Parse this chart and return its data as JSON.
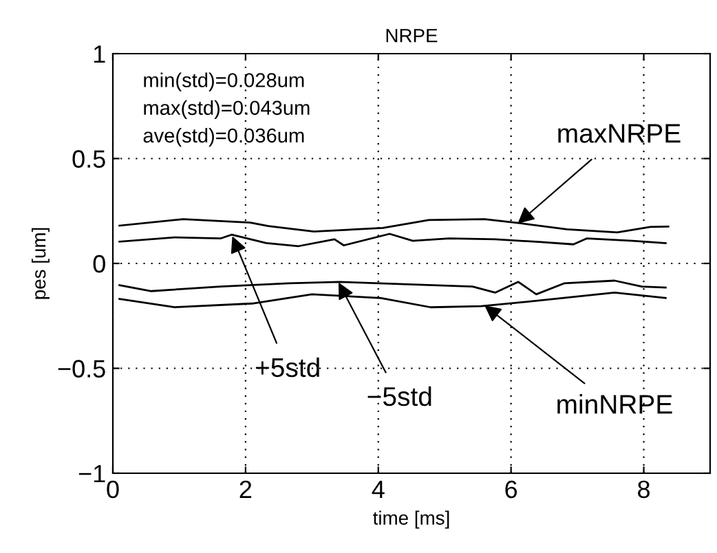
{
  "chart_data": {
    "type": "line",
    "title": "NRPE",
    "xlabel": "time [ms]",
    "ylabel": "pes [um]",
    "xlim": [
      0,
      9
    ],
    "xticks": [
      0,
      2,
      4,
      6,
      8
    ],
    "ylim": [
      -1,
      1
    ],
    "yticks": [
      {
        "value": -1,
        "label": "−1"
      },
      {
        "value": -0.5,
        "label": "−0.5"
      },
      0,
      0.5,
      1
    ],
    "grid": true,
    "legend": false,
    "line_style": "solid",
    "marker": "none",
    "series": [
      {
        "color": "#000000",
        "x": [
          0.1,
          1.06,
          2.07,
          2.34,
          3.03,
          4.07,
          4.76,
          5.6,
          6.15,
          6.84,
          7.6,
          8.1,
          8.37
        ],
        "values": [
          0.18,
          0.211,
          0.195,
          0.178,
          0.152,
          0.169,
          0.207,
          0.211,
          0.191,
          0.163,
          0.148,
          0.174,
          0.176
        ]
      },
      {
        "color": "#000000",
        "x": [
          0.1,
          0.93,
          1.62,
          1.79,
          2.31,
          2.79,
          3.34,
          3.48,
          4.17,
          4.52,
          5.07,
          5.76,
          6.45,
          6.94,
          7.14,
          7.83,
          8.33
        ],
        "values": [
          0.104,
          0.124,
          0.119,
          0.137,
          0.097,
          0.082,
          0.115,
          0.086,
          0.141,
          0.108,
          0.119,
          0.115,
          0.102,
          0.091,
          0.119,
          0.108,
          0.097
        ]
      },
      {
        "color": "#000000",
        "x": [
          0.1,
          0.58,
          1.62,
          2.65,
          3.41,
          4.38,
          5.42,
          5.76,
          6.11,
          6.38,
          6.8,
          7.56,
          7.97,
          8.33
        ],
        "values": [
          -0.104,
          -0.132,
          -0.11,
          -0.095,
          -0.088,
          -0.099,
          -0.11,
          -0.139,
          -0.088,
          -0.147,
          -0.095,
          -0.082,
          -0.11,
          -0.115
        ]
      },
      {
        "color": "#000000",
        "x": [
          0.1,
          0.93,
          2.1,
          3.0,
          4.04,
          4.79,
          5.55,
          6.45,
          7.56,
          8.33
        ],
        "values": [
          -0.169,
          -0.209,
          -0.191,
          -0.147,
          -0.165,
          -0.209,
          -0.204,
          -0.176,
          -0.139,
          -0.165
        ]
      }
    ],
    "annotations": [
      "min(std)=0.028um",
      "max(std)=0.043um",
      "ave(std)=0.036um",
      {
        "text": "maxNRPE",
        "x": 6.1,
        "y": 0.19
      },
      {
        "text": "+5std",
        "x": 1.8,
        "y": 0.13
      },
      {
        "text": "−5std",
        "x": 3.4,
        "y": -0.09
      },
      {
        "text": "minNRPE",
        "x": 5.6,
        "y": -0.2
      }
    ]
  }
}
